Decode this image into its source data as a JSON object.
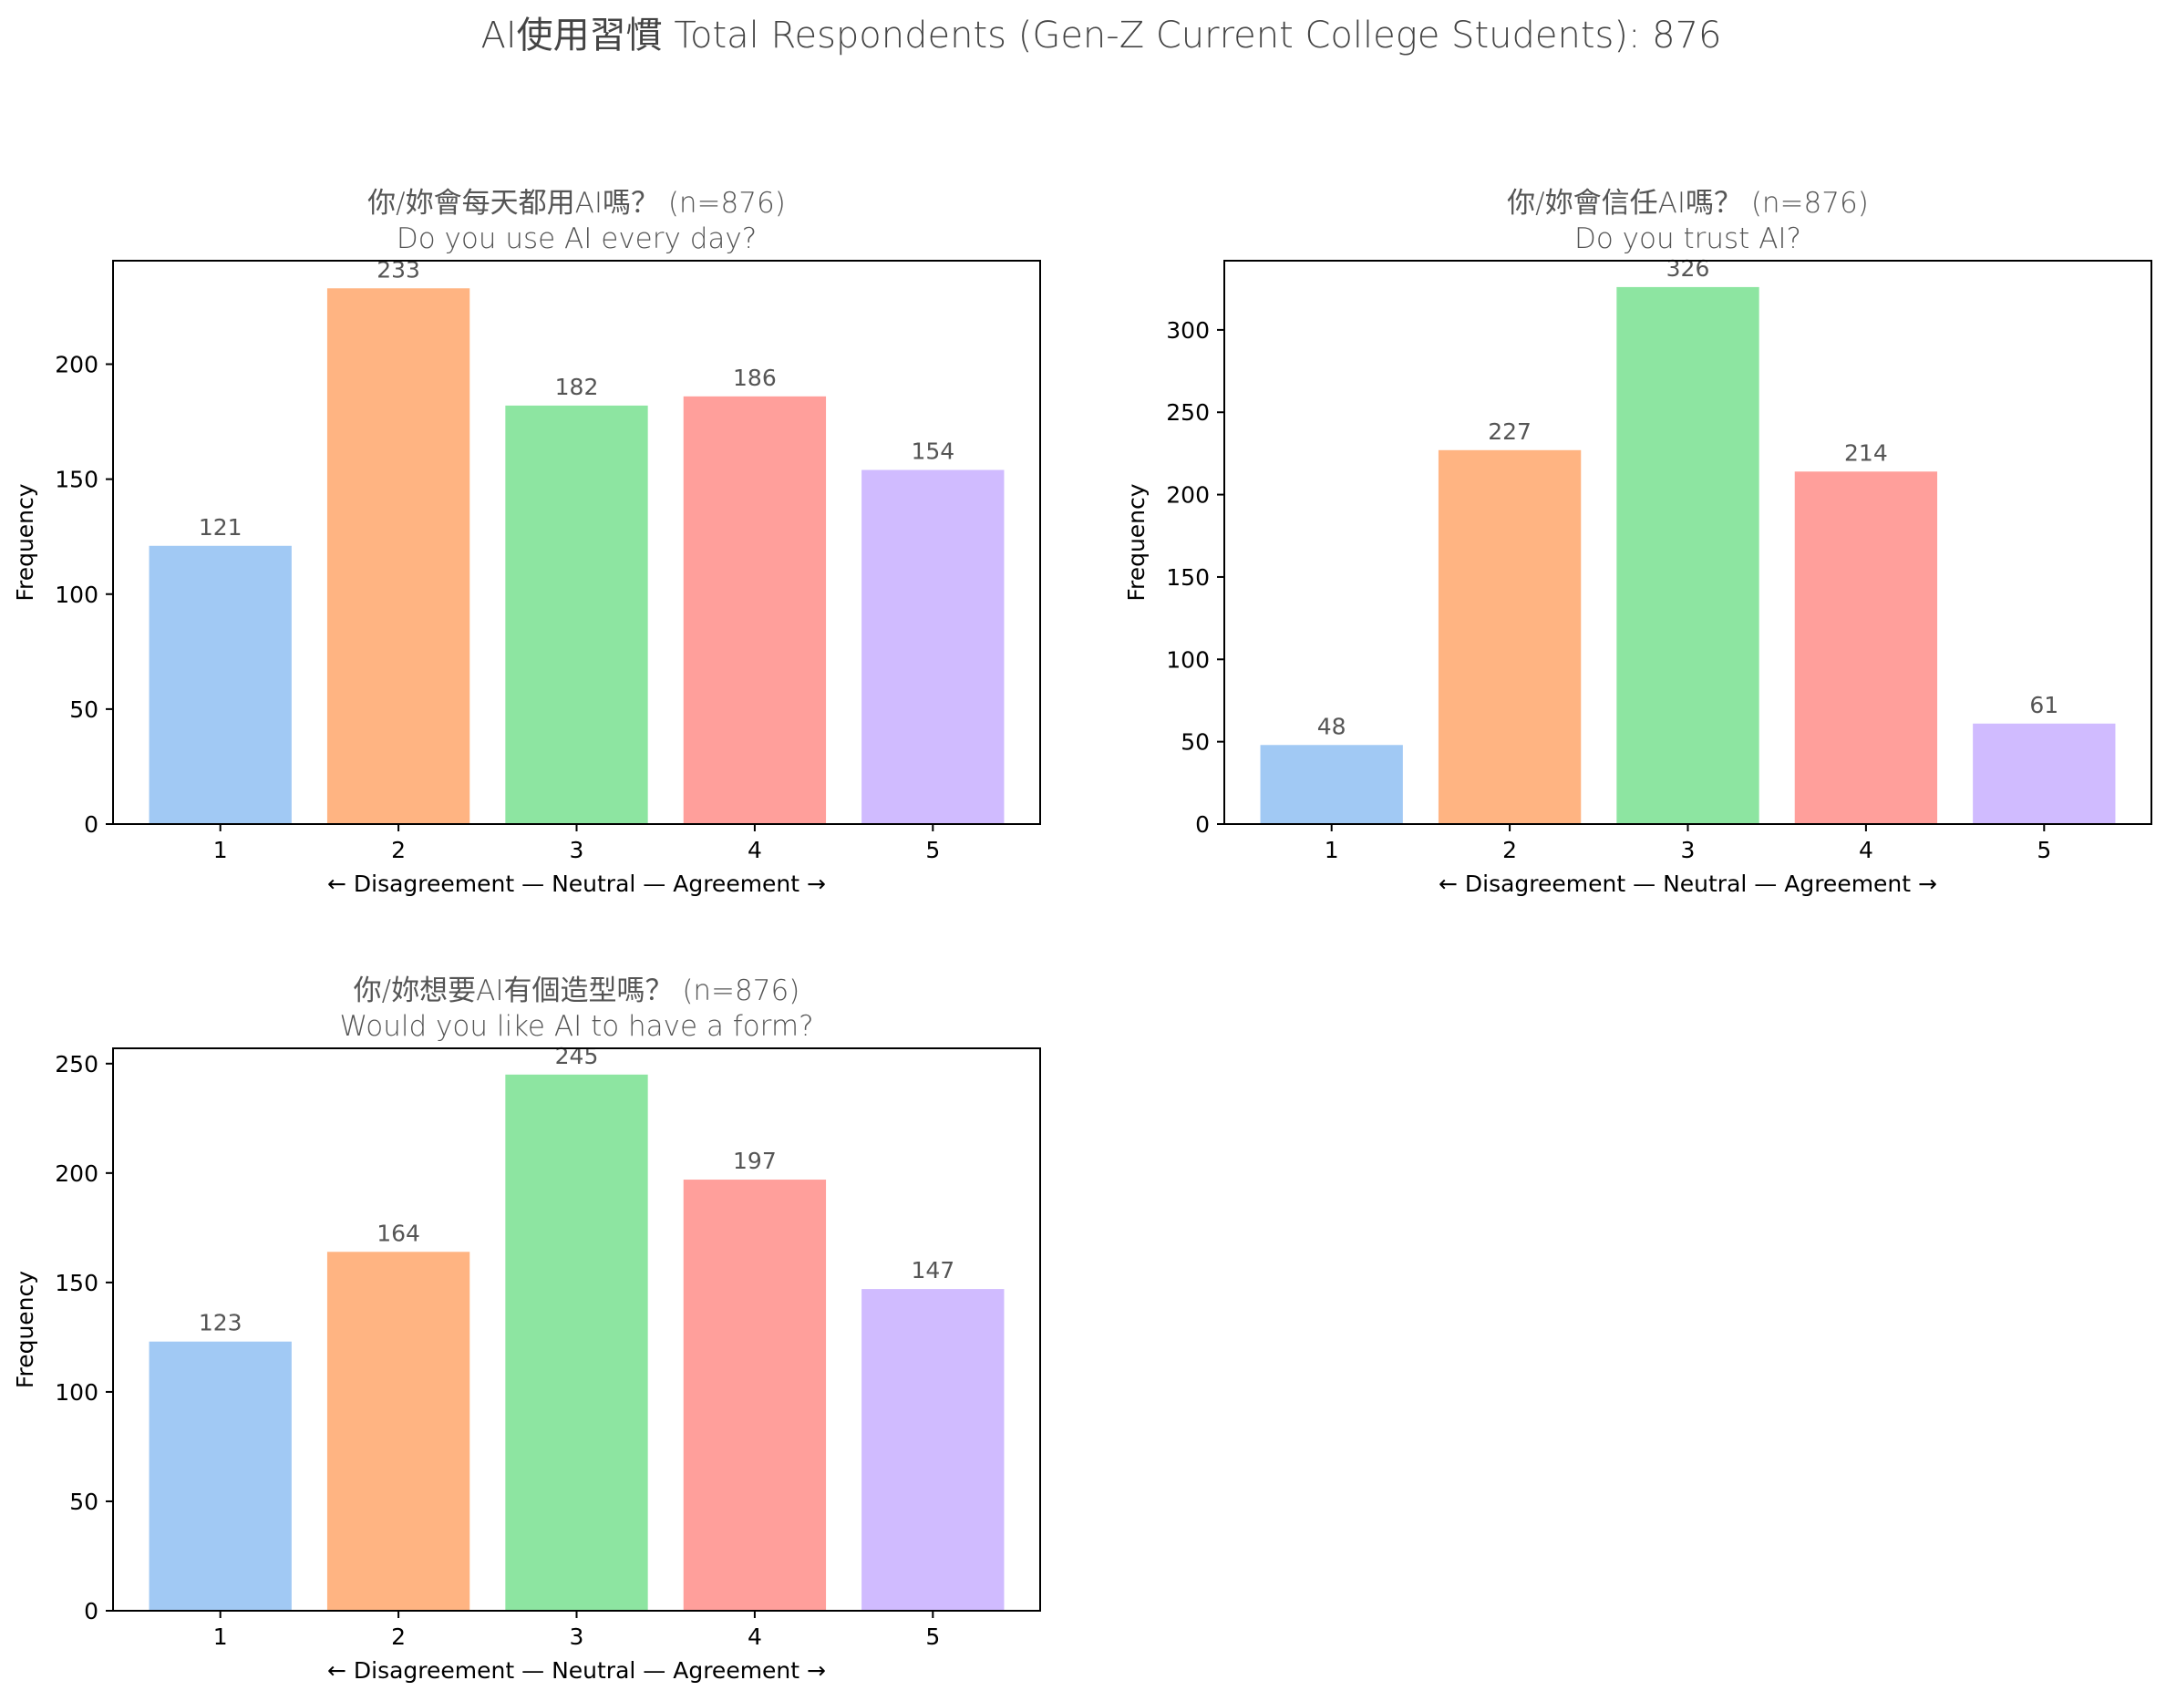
{
  "figure": {
    "title": "AI使用習慣  Total Respondents (Gen-Z Current College Students): 876"
  },
  "colors": [
    "#a1c9f4",
    "#ffb482",
    "#8de5a1",
    "#ff9f9b",
    "#d0bbff"
  ],
  "chart_data": [
    {
      "type": "bar",
      "title": "你/妳會每天都用AI嗎？ (n=876)",
      "subtitle": "Do you use AI every day?",
      "categories": [
        "1",
        "2",
        "3",
        "4",
        "5"
      ],
      "values": [
        121,
        233,
        182,
        186,
        154
      ],
      "xlabel": "← Disagreement — Neutral — Agreement →",
      "ylabel": "Frequency",
      "ylim": [
        0,
        245
      ],
      "yticks": [
        0,
        50,
        100,
        150,
        200
      ],
      "grid": false
    },
    {
      "type": "bar",
      "title": "你/妳會信任AI嗎？ (n=876)",
      "subtitle": "Do you trust AI?",
      "categories": [
        "1",
        "2",
        "3",
        "4",
        "5"
      ],
      "values": [
        48,
        227,
        326,
        214,
        61
      ],
      "xlabel": "← Disagreement — Neutral — Agreement →",
      "ylabel": "Frequency",
      "ylim": [
        0,
        342
      ],
      "yticks": [
        0,
        50,
        100,
        150,
        200,
        250,
        300
      ],
      "grid": false
    },
    {
      "type": "bar",
      "title": "你/妳想要AI有個造型嗎？ (n=876)",
      "subtitle": "Would you like AI to have a form?",
      "categories": [
        "1",
        "2",
        "3",
        "4",
        "5"
      ],
      "values": [
        123,
        164,
        245,
        197,
        147
      ],
      "xlabel": "← Disagreement — Neutral — Agreement →",
      "ylabel": "Frequency",
      "ylim": [
        0,
        257
      ],
      "yticks": [
        0,
        50,
        100,
        150,
        200,
        250
      ],
      "grid": false
    }
  ]
}
